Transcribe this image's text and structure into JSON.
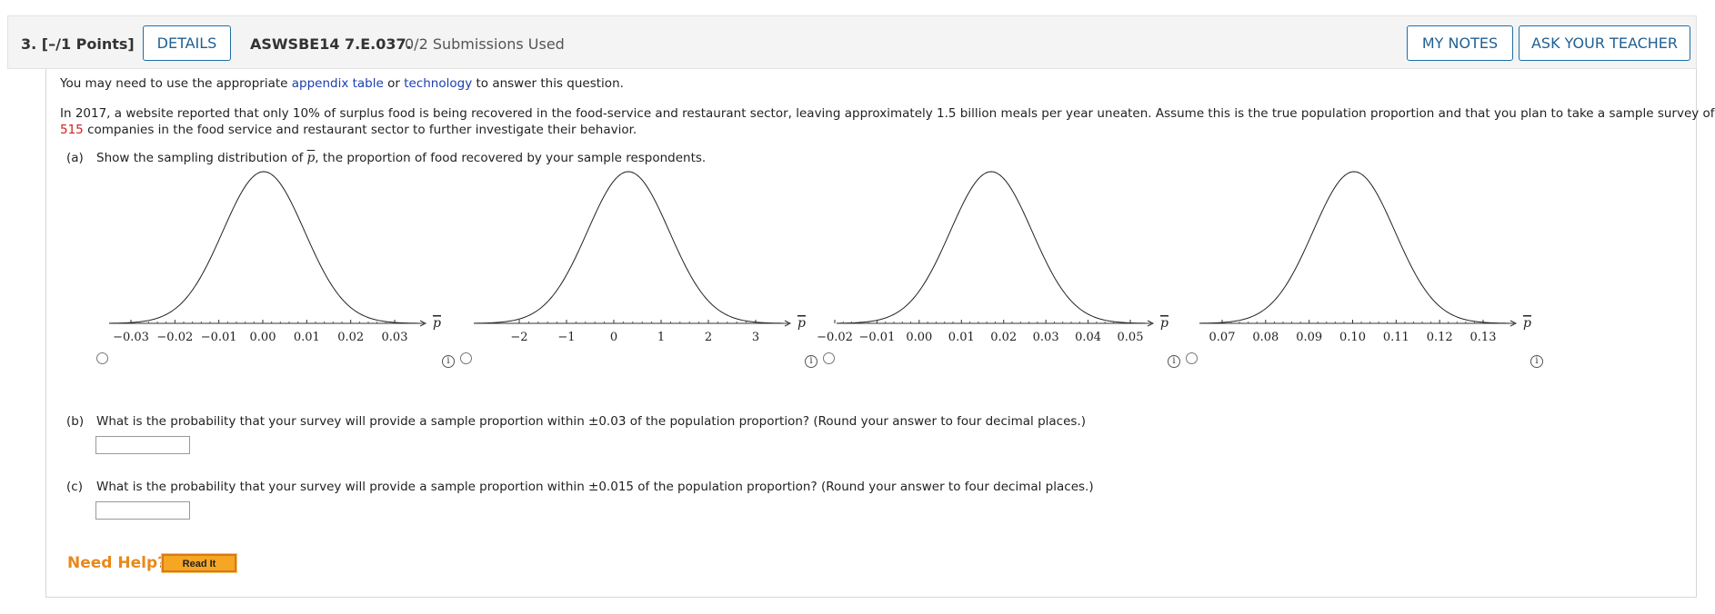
{
  "header": {
    "question_number": "3.",
    "points": "[–/1 Points]",
    "details_label": "DETAILS",
    "question_code": "ASWSBE14 7.E.037.",
    "submissions": "0/2 Submissions Used",
    "my_notes_label": "MY NOTES",
    "ask_teacher_label": "ASK YOUR TEACHER"
  },
  "question": {
    "intro_prefix": "You may need to use the appropriate ",
    "intro_link1": "appendix table",
    "intro_mid": " or ",
    "intro_link2": "technology",
    "intro_suffix": " to answer this question.",
    "body_line1": "In 2017, a website reported that only 10% of surplus food is being recovered in the food-service and restaurant sector, leaving approximately 1.5 billion meals per year uneaten. Assume this is the true population proportion and that you plan to take a sample survey of",
    "body_number": "515",
    "body_line2": " companies in the food service and restaurant sector to further investigate their behavior."
  },
  "part_a": {
    "label": "(a)",
    "text_before": "Show the sampling distribution of ",
    "symbol": "p",
    "text_after": ", the proportion of food recovered by your sample respondents."
  },
  "axis_symbol": "p",
  "options": [
    {
      "ticks": [
        "−0.03",
        "−0.02",
        "−0.01",
        "0.00",
        "0.01",
        "0.02",
        "0.03"
      ],
      "selected": false
    },
    {
      "ticks": [
        "−2",
        "−1",
        "0",
        "1",
        "2",
        "3"
      ],
      "selected": false
    },
    {
      "ticks": [
        "−0.02",
        "−0.01",
        "0.00",
        "0.01",
        "0.02",
        "0.03",
        "0.04",
        "0.05"
      ],
      "selected": false
    },
    {
      "ticks": [
        "0.07",
        "0.08",
        "0.09",
        "0.10",
        "0.11",
        "0.12",
        "0.13"
      ],
      "selected": false
    }
  ],
  "info_icon_glyph": "i",
  "part_b": {
    "label": "(b)",
    "text": "What is the probability that your survey will provide a sample proportion within ±0.03 of the population proportion? (Round your answer to four decimal places.)",
    "answer_value": ""
  },
  "part_c": {
    "label": "(c)",
    "text": "What is the probability that your survey will provide a sample proportion within ±0.015 of the population proportion? (Round your answer to four decimal places.)",
    "answer_value": ""
  },
  "help": {
    "need_help_label": "Need Help?",
    "read_it_label": "Read It"
  }
}
